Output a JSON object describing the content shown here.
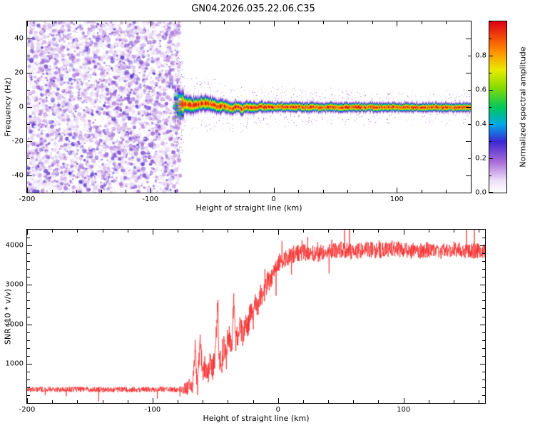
{
  "title": "GN04.2026.035.22.06.C35",
  "chart_data": [
    {
      "type": "heatmap",
      "description": "Spectrogram: purple random noise for x < -76 km, narrow high-amplitude signal band near 0 Hz emerging at x = -80 km and continuing to right edge",
      "x_axis": {
        "label": "Height of straight line (km)",
        "min": -200,
        "max": 160,
        "tick_values": [
          -200,
          -100,
          0,
          100
        ],
        "tick_labels": [
          "-200",
          "-100",
          "0",
          "100"
        ],
        "minor_step": 20
      },
      "y_axis": {
        "label": "Frequency (Hz)",
        "min": -50,
        "max": 50,
        "tick_values": [
          -40,
          -20,
          0,
          20,
          40
        ],
        "tick_labels": [
          "-40",
          "-20",
          "0",
          "20",
          "40"
        ],
        "minor_step": 10
      },
      "colorbar": {
        "label": "Normalized spectral amplitude",
        "min": 0,
        "max": 1,
        "tick_values": [
          0,
          0.2,
          0.4,
          0.6,
          0.8
        ],
        "tick_labels": [
          "0.0",
          "0.2",
          "0.4",
          "0.6",
          "0.8"
        ],
        "minor_step": 0.1,
        "colormap_stops": [
          [
            0,
            "#ffffff"
          ],
          [
            0.07,
            "#eee2f8"
          ],
          [
            0.18,
            "#aa6ed7"
          ],
          [
            0.3,
            "#3c28d2"
          ],
          [
            0.4,
            "#00aae6"
          ],
          [
            0.5,
            "#00c85a"
          ],
          [
            0.62,
            "#8cdc00"
          ],
          [
            0.72,
            "#ebeb00"
          ],
          [
            0.83,
            "#ff8c00"
          ],
          [
            1,
            "#e10014"
          ]
        ]
      },
      "noise_region": {
        "x_range": [
          -200,
          -76
        ],
        "amplitude_range": [
          0.0,
          0.3
        ]
      },
      "signal_band": {
        "x_range": [
          -80,
          160
        ],
        "peak_amplitude": 1.0,
        "center_hz": [
          [
            -80,
            1.5
          ],
          [
            -72,
            2.0
          ],
          [
            -66,
            1.0
          ],
          [
            -60,
            2.0
          ],
          [
            -54,
            2.5
          ],
          [
            -50,
            1.5
          ],
          [
            -46,
            0.5
          ],
          [
            -42,
            1.2
          ],
          [
            -38,
            0.2
          ],
          [
            -34,
            -0.8
          ],
          [
            -30,
            0.5
          ],
          [
            -26,
            -1.0
          ],
          [
            -22,
            0.3
          ],
          [
            -18,
            -0.5
          ],
          [
            -12,
            0.2
          ],
          [
            0,
            0.3
          ],
          [
            30,
            0
          ],
          [
            160,
            0
          ]
        ],
        "half_width_hz": [
          [
            -80,
            4.5
          ],
          [
            -60,
            3.5
          ],
          [
            -40,
            3.0
          ],
          [
            -20,
            2.5
          ],
          [
            0,
            2.2
          ],
          [
            160,
            2.0
          ]
        ]
      }
    },
    {
      "type": "line",
      "description": "SNR vs height: flat noise floor ~350 until -70 km, spiky rise between -70 and 0 km, noisy plateau ~3850 above 0 km",
      "x_axis": {
        "label": "Height of straight line (km)",
        "min": -200,
        "max": 165,
        "tick_values": [
          -200,
          -100,
          0,
          100
        ],
        "tick_labels": [
          "-200",
          "-100",
          "0",
          "100"
        ],
        "minor_step": 20
      },
      "y_axis": {
        "label": "SNR (10 * v/v)",
        "min": 0,
        "max": 4400,
        "tick_values": [
          1000,
          2000,
          3000,
          4000
        ],
        "tick_labels": [
          "1000",
          "2000",
          "3000",
          "4000"
        ],
        "minor_step": 200
      },
      "series": [
        {
          "name": "SNR",
          "color": "#f62d2d",
          "anchors": [
            [
              -200,
              350
            ],
            [
              -120,
              340
            ],
            [
              -90,
              350
            ],
            [
              -78,
              340
            ],
            [
              -72,
              380
            ],
            [
              -68,
              450
            ],
            [
              -66,
              1450
            ],
            [
              -65,
              650
            ],
            [
              -63,
              900
            ],
            [
              -62,
              1550
            ],
            [
              -60,
              750
            ],
            [
              -58,
              950
            ],
            [
              -56,
              700
            ],
            [
              -54,
              1150
            ],
            [
              -52,
              850
            ],
            [
              -50,
              1250
            ],
            [
              -48,
              2600
            ],
            [
              -47,
              1150
            ],
            [
              -45,
              950
            ],
            [
              -43,
              1500
            ],
            [
              -41,
              1100
            ],
            [
              -39,
              1750
            ],
            [
              -37,
              1350
            ],
            [
              -35,
              2750
            ],
            [
              -34,
              1550
            ],
            [
              -32,
              1700
            ],
            [
              -30,
              1950
            ],
            [
              -28,
              1700
            ],
            [
              -26,
              2150
            ],
            [
              -24,
              1900
            ],
            [
              -22,
              2350
            ],
            [
              -20,
              2100
            ],
            [
              -18,
              2550
            ],
            [
              -16,
              2400
            ],
            [
              -14,
              2750
            ],
            [
              -12,
              2600
            ],
            [
              -10,
              2950
            ],
            [
              -8,
              3100
            ],
            [
              -6,
              3050
            ],
            [
              -4,
              3300
            ],
            [
              -2,
              3450
            ],
            [
              0,
              3550
            ],
            [
              5,
              3650
            ],
            [
              10,
              3750
            ],
            [
              15,
              3800
            ],
            [
              20,
              3820
            ],
            [
              30,
              3780
            ],
            [
              40,
              3850
            ],
            [
              50,
              3900
            ],
            [
              60,
              3830
            ],
            [
              70,
              3900
            ],
            [
              80,
              3870
            ],
            [
              90,
              3920
            ],
            [
              100,
              3880
            ],
            [
              110,
              3850
            ],
            [
              120,
              3900
            ],
            [
              130,
              3860
            ],
            [
              140,
              3910
            ],
            [
              150,
              3870
            ],
            [
              160,
              3850
            ],
            [
              165,
              3840
            ]
          ],
          "noise_amplitude": [
            [
              -200,
              70
            ],
            [
              -80,
              70
            ],
            [
              -76,
              120
            ],
            [
              -70,
              220
            ],
            [
              -60,
              280
            ],
            [
              -40,
              300
            ],
            [
              -20,
              280
            ],
            [
              -5,
              250
            ],
            [
              0,
              230
            ],
            [
              30,
              210
            ],
            [
              165,
              200
            ]
          ]
        }
      ]
    }
  ]
}
